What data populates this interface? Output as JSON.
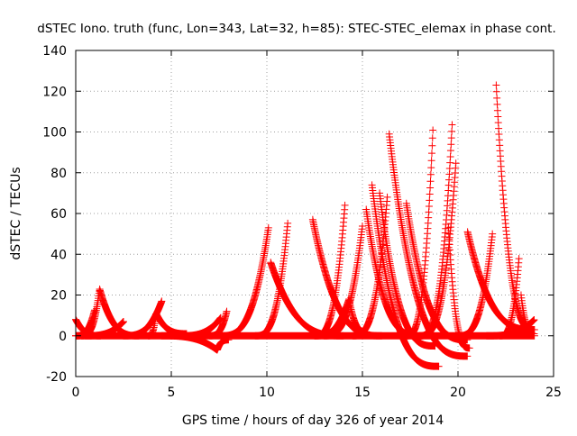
{
  "chart_data": {
    "type": "scatter",
    "title": "dSTEC Iono. truth (func, Lon=343, Lat=32, h=85): STEC-STEC_elemax in phase cont.",
    "xlabel": "GPS time / hours of day 326 of year 2014",
    "ylabel": "dSTEC  / TECUs",
    "xlim": [
      0,
      25
    ],
    "ylim": [
      -20,
      140
    ],
    "xticks": [
      0,
      5,
      10,
      15,
      20,
      25
    ],
    "yticks": [
      -20,
      0,
      20,
      40,
      60,
      80,
      100,
      120,
      140
    ],
    "grid": true,
    "marker": "+",
    "color": "#ff0000",
    "legend": "none",
    "arcs": [
      {
        "t_start": 0.0,
        "t_peak": 0.0,
        "t_end": 1.3,
        "peak": 8,
        "end": 0
      },
      {
        "t_start": 0.0,
        "t_peak": 1.0,
        "t_end": 1.0,
        "peak": 13,
        "end": 13
      },
      {
        "t_start": 0.3,
        "t_peak": 1.25,
        "t_end": 3.3,
        "peak": 23,
        "end": 0
      },
      {
        "t_start": 0.5,
        "t_peak": 2.5,
        "t_end": 2.5,
        "peak": 7,
        "end": 7
      },
      {
        "t_start": 2.5,
        "t_peak": 4.5,
        "t_end": 4.5,
        "peak": 17,
        "end": 17
      },
      {
        "t_start": 3.8,
        "t_peak": 4.2,
        "t_end": 5.8,
        "peak": 11,
        "end": 1
      },
      {
        "t_start": 4.5,
        "t_peak": 7.4,
        "t_end": 8.0,
        "peak": -7,
        "end": -2
      },
      {
        "t_start": 5.5,
        "t_peak": 7.6,
        "t_end": 7.6,
        "peak": 9,
        "end": 9
      },
      {
        "t_start": 7.0,
        "t_peak": 7.9,
        "t_end": 7.9,
        "peak": 12,
        "end": 12
      },
      {
        "t_start": 7.6,
        "t_peak": 10.1,
        "t_end": 10.1,
        "peak": 54,
        "end": 54
      },
      {
        "t_start": 9.4,
        "t_peak": 11.1,
        "t_end": 11.1,
        "peak": 56,
        "end": 56
      },
      {
        "t_start": 10.2,
        "t_peak": 10.2,
        "t_end": 14.0,
        "peak": 36,
        "end": 0
      },
      {
        "t_start": 12.4,
        "t_peak": 12.4,
        "t_end": 16.0,
        "peak": 57,
        "end": 0
      },
      {
        "t_start": 12.5,
        "t_peak": 14.1,
        "t_end": 14.1,
        "peak": 66,
        "end": 66
      },
      {
        "t_start": 12.5,
        "t_peak": 14.3,
        "t_end": 15.2,
        "peak": 18,
        "end": 2
      },
      {
        "t_start": 13.0,
        "t_peak": 15.0,
        "t_end": 15.0,
        "peak": 54,
        "end": 54
      },
      {
        "t_start": 14.5,
        "t_peak": 16.3,
        "t_end": 16.3,
        "peak": 68,
        "end": 68
      },
      {
        "t_start": 15.2,
        "t_peak": 15.2,
        "t_end": 18.0,
        "peak": 62,
        "end": 0
      },
      {
        "t_start": 15.5,
        "t_peak": 15.5,
        "t_end": 19.0,
        "peak": 74,
        "end": -15
      },
      {
        "t_start": 15.9,
        "t_peak": 15.9,
        "t_end": 18.8,
        "peak": 70,
        "end": -5
      },
      {
        "t_start": 16.4,
        "t_peak": 16.4,
        "t_end": 20.5,
        "peak": 99,
        "end": -10
      },
      {
        "t_start": 17.3,
        "t_peak": 17.3,
        "t_end": 20.5,
        "peak": 65,
        "end": -2
      },
      {
        "t_start": 17.3,
        "t_peak": 18.7,
        "t_end": 18.7,
        "peak": 104,
        "end": 104
      },
      {
        "t_start": 18.0,
        "t_peak": 19.7,
        "t_end": 19.7,
        "peak": 105,
        "end": 105
      },
      {
        "t_start": 18.0,
        "t_peak": 19.9,
        "t_end": 19.9,
        "peak": 86,
        "end": 86
      },
      {
        "t_start": 19.5,
        "t_peak": 19.5,
        "t_end": 20.6,
        "peak": 53,
        "end": -6
      },
      {
        "t_start": 20.5,
        "t_peak": 20.5,
        "t_end": 24.0,
        "peak": 51,
        "end": 3
      },
      {
        "t_start": 20.0,
        "t_peak": 21.8,
        "t_end": 21.8,
        "peak": 50,
        "end": 50
      },
      {
        "t_start": 22.0,
        "t_peak": 22.0,
        "t_end": 24.0,
        "peak": 123,
        "end": 3
      },
      {
        "t_start": 22.2,
        "t_peak": 23.2,
        "t_end": 23.2,
        "peak": 39,
        "end": 39
      },
      {
        "t_start": 23.3,
        "t_peak": 23.3,
        "t_end": 24.0,
        "peak": 20,
        "end": 1
      },
      {
        "t_start": 21.5,
        "t_peak": 24.0,
        "t_end": 24.0,
        "peak": 8,
        "end": 8
      },
      {
        "t_start": 0.0,
        "t_peak": 12.0,
        "t_end": 24.0,
        "peak": 0,
        "end": 0
      }
    ]
  }
}
